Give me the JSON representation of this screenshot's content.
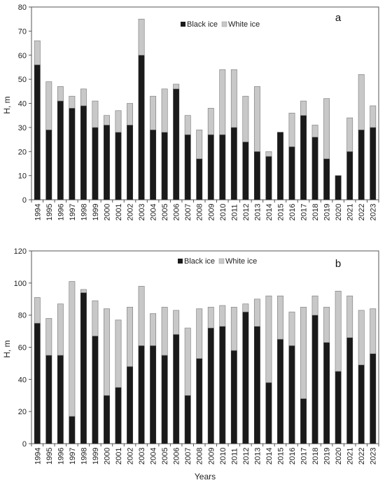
{
  "chart_data": [
    {
      "type": "bar",
      "stacked": true,
      "panel_label": "a",
      "ylabel": "H, m",
      "xlabel": "",
      "ylim": [
        0,
        80
      ],
      "yticks": [
        0,
        10,
        20,
        30,
        40,
        50,
        60,
        70,
        80
      ],
      "categories": [
        "1994",
        "1995",
        "1996",
        "1997",
        "1998",
        "1999",
        "2000",
        "2001",
        "2002",
        "2003",
        "2004",
        "2005",
        "2006",
        "2007",
        "2008",
        "2009",
        "2010",
        "2011",
        "2012",
        "2013",
        "2014",
        "2015",
        "2016",
        "2017",
        "2018",
        "2019",
        "2020",
        "2021",
        "2022",
        "2023"
      ],
      "legend_position": "top-center",
      "grid": false,
      "series": [
        {
          "name": "Black ice",
          "color": "#1a1a1a",
          "values": [
            56,
            29,
            41,
            38,
            39,
            30,
            31,
            28,
            31,
            60,
            29,
            28,
            46,
            27,
            17,
            27,
            27,
            30,
            24,
            20,
            18,
            28,
            22,
            35,
            26,
            17,
            10,
            20,
            29,
            30
          ]
        },
        {
          "name": "White ice",
          "color": "#c8c8c8",
          "values": [
            10,
            20,
            6,
            5,
            7,
            11,
            4,
            9,
            9,
            15,
            14,
            18,
            2,
            8,
            12,
            11,
            27,
            24,
            19,
            27,
            2,
            0,
            14,
            6,
            5,
            25,
            0,
            14,
            23,
            9
          ]
        }
      ]
    },
    {
      "type": "bar",
      "stacked": true,
      "panel_label": "b",
      "ylabel": "H, m",
      "xlabel": "Years",
      "ylim": [
        0,
        120
      ],
      "yticks": [
        0,
        20,
        40,
        60,
        80,
        100,
        120
      ],
      "categories": [
        "1994",
        "1995",
        "1996",
        "1997",
        "1998",
        "1999",
        "2000",
        "2001",
        "2002",
        "2003",
        "2004",
        "2005",
        "2006",
        "2007",
        "2008",
        "2009",
        "2010",
        "2011",
        "2012",
        "2013",
        "2014",
        "2015",
        "2016",
        "2017",
        "2018",
        "2019",
        "2020",
        "2021",
        "2022",
        "2023"
      ],
      "legend_position": "top-center",
      "grid": false,
      "series": [
        {
          "name": "Black ice",
          "color": "#1a1a1a",
          "values": [
            75,
            55,
            55,
            17,
            94,
            67,
            30,
            35,
            48,
            61,
            61,
            55,
            68,
            30,
            53,
            72,
            73,
            58,
            82,
            73,
            38,
            65,
            61,
            28,
            80,
            63,
            45,
            66,
            49,
            56
          ]
        },
        {
          "name": "White ice",
          "color": "#c8c8c8",
          "values": [
            16,
            23,
            32,
            84,
            2,
            22,
            54,
            42,
            37,
            37,
            20,
            30,
            15,
            42,
            31,
            13,
            13,
            27,
            5,
            17,
            54,
            27,
            21,
            57,
            12,
            22,
            50,
            26,
            34,
            28
          ]
        }
      ]
    }
  ]
}
